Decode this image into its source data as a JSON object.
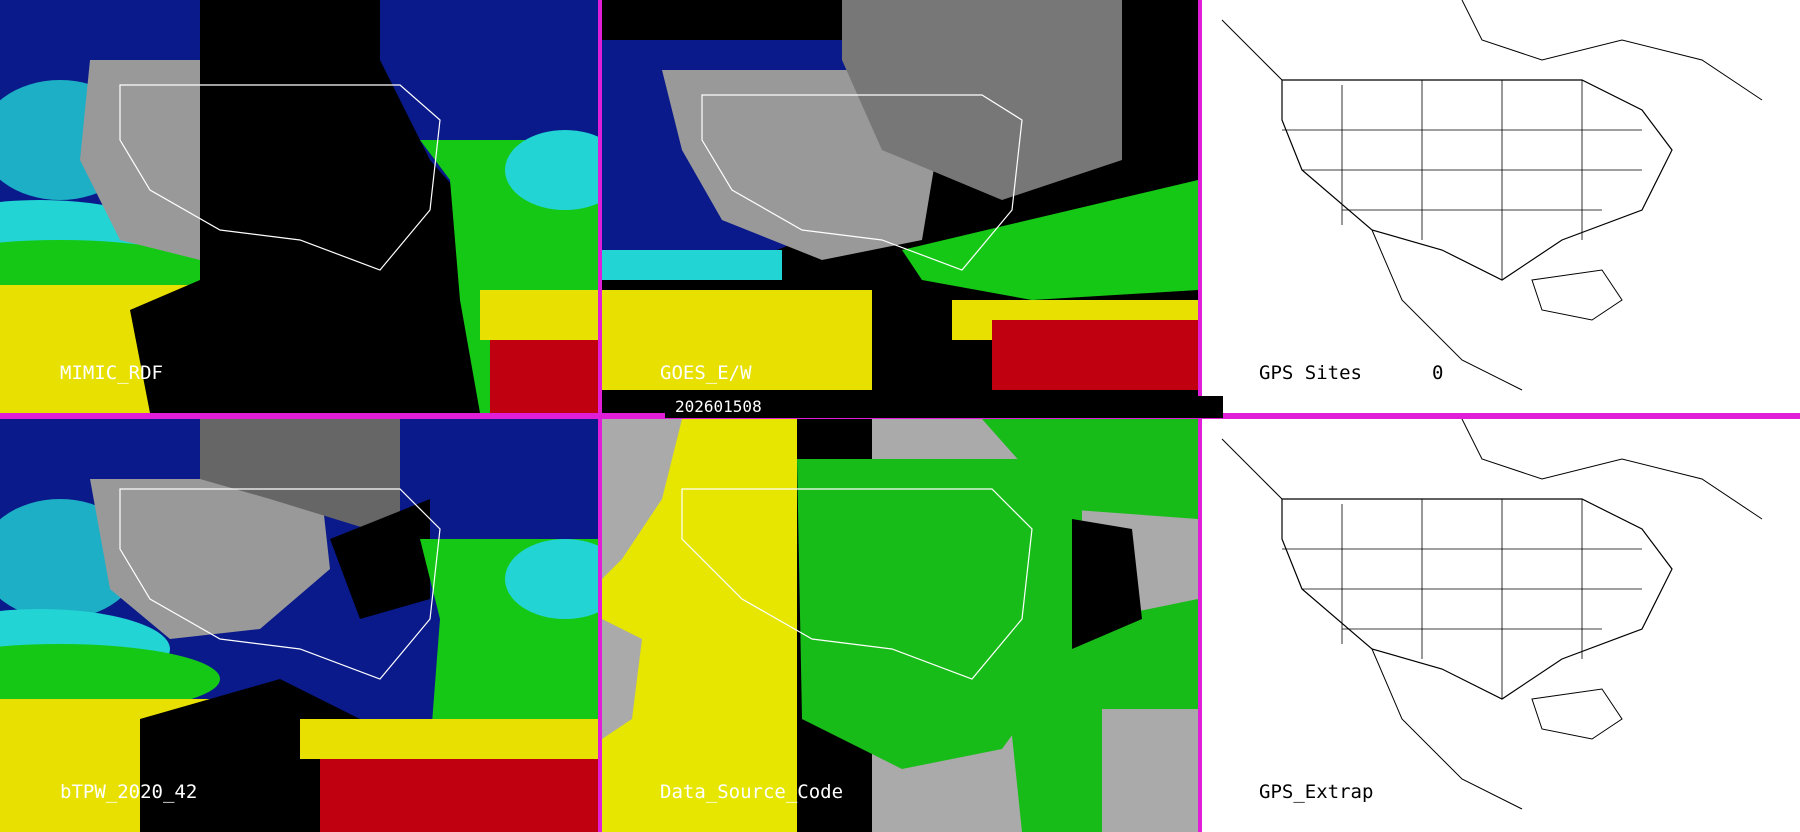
{
  "panels": [
    {
      "id": "mimic",
      "label": "MIMIC_RDF"
    },
    {
      "id": "goes",
      "label": "GOES_E/W"
    },
    {
      "id": "gps_sites",
      "label": "GPS Sites",
      "count": "0"
    },
    {
      "id": "btpw",
      "label": "bTPW_2020_42"
    },
    {
      "id": "dsc",
      "label": "Data_Source_Code"
    },
    {
      "id": "gps_extrap",
      "label": "GPS_Extrap"
    }
  ],
  "timestamp": "202601508",
  "colors": {
    "divider": "#e01ed8",
    "tpw_low": "#0a1a8a",
    "tpw_mid": "#22d4d4",
    "tpw_midhigh": "#16c816",
    "tpw_high": "#e8e000",
    "tpw_max": "#c00010",
    "dsc_gray": "#aaaaaa",
    "dsc_yellow": "#e6e600",
    "dsc_green": "#18bc18"
  }
}
